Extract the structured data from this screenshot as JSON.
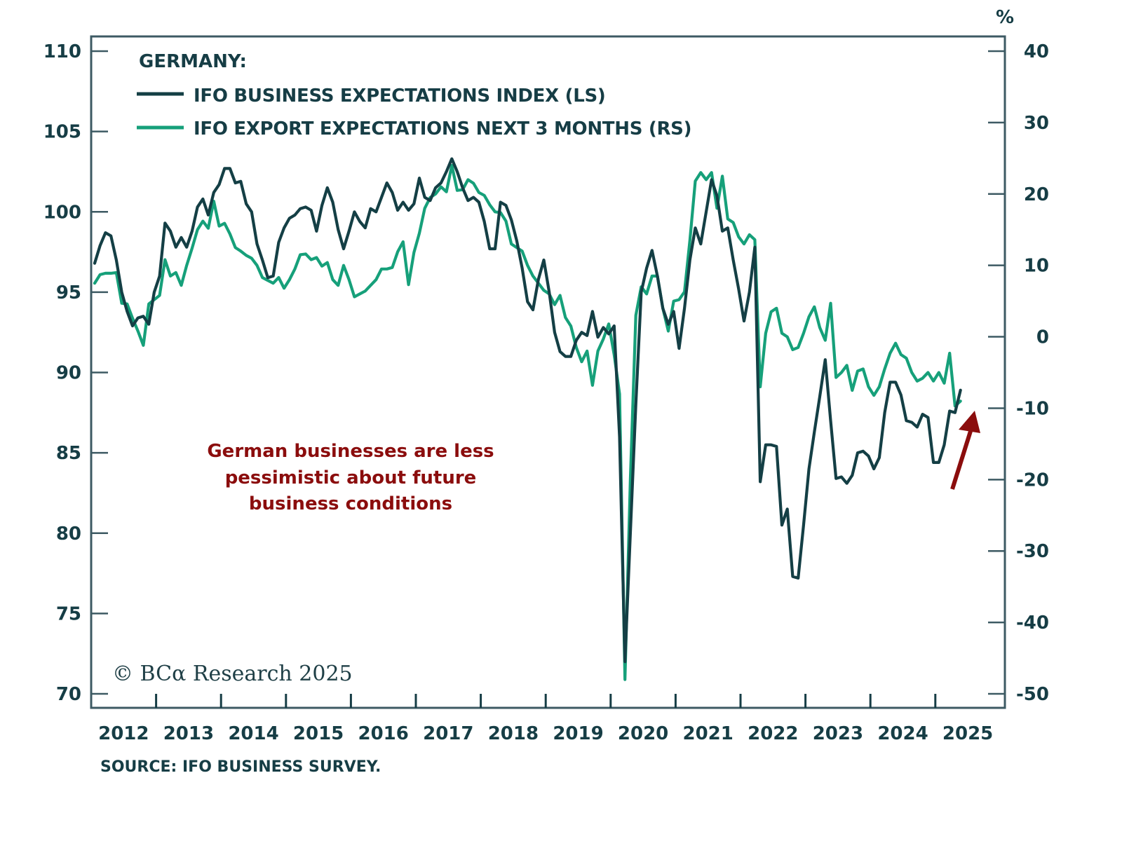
{
  "chart_data": {
    "type": "line",
    "title": "GERMANY:",
    "source": "SOURCE: IFO BUSINESS SURVEY.",
    "copyright": "© BCα Research 2025",
    "annotation": [
      "German businesses are less",
      "pessimistic about future",
      "business conditions"
    ],
    "right_axis_unit": "%",
    "x_start": "2012-01",
    "x_frequency": "monthly",
    "x_tick_labels": [
      "2012",
      "2013",
      "2014",
      "2015",
      "2016",
      "2017",
      "2018",
      "2019",
      "2020",
      "2021",
      "2022",
      "2023",
      "2024",
      "2025"
    ],
    "left_axis": {
      "label": "LS",
      "ylim": [
        70,
        110
      ],
      "ticks": [
        110,
        105,
        100,
        95,
        90,
        85,
        80,
        75,
        70
      ]
    },
    "right_axis": {
      "label": "RS",
      "ylim": [
        -50,
        40
      ],
      "ticks": [
        40,
        30,
        20,
        10,
        0,
        -10,
        -20,
        -30,
        -40,
        -50
      ]
    },
    "grid": false,
    "legend_position": "top-left",
    "colors": {
      "business": "#143f45",
      "export": "#16a07a",
      "annotation": "#8b0d0d",
      "axis": "#3d5a63"
    },
    "series": [
      {
        "name": "IFO BUSINESS EXPECTATIONS INDEX (LS)",
        "axis": "left",
        "color": "#143f45",
        "values": [
          96.8,
          97.9,
          98.7,
          98.5,
          97.0,
          95.0,
          93.8,
          92.9,
          93.4,
          93.5,
          93.0,
          95.0,
          96.0,
          99.3,
          98.8,
          97.8,
          98.4,
          97.8,
          98.8,
          100.3,
          100.8,
          99.8,
          101.2,
          101.7,
          102.7,
          102.7,
          101.8,
          101.9,
          100.5,
          100.0,
          98.0,
          97.0,
          95.9,
          96.0,
          98.1,
          99.0,
          99.6,
          99.8,
          100.2,
          100.3,
          100.1,
          98.8,
          100.4,
          101.5,
          100.6,
          98.9,
          97.7,
          98.8,
          100.0,
          99.4,
          99.0,
          100.2,
          100.0,
          100.9,
          101.8,
          101.2,
          100.1,
          100.6,
          100.1,
          100.5,
          102.1,
          100.9,
          100.7,
          101.5,
          101.8,
          102.5,
          103.3,
          102.5,
          101.5,
          100.7,
          100.9,
          100.6,
          99.4,
          97.7,
          97.7,
          100.6,
          100.4,
          99.5,
          98.2,
          96.5,
          94.4,
          93.9,
          95.8,
          97.0,
          95.0,
          92.5,
          91.3,
          91.0,
          91.0,
          92.0,
          92.5,
          92.3,
          93.8,
          92.2,
          92.8,
          92.4,
          92.9,
          86.0,
          72.0,
          80.0,
          88.0,
          95.0,
          96.5,
          97.6,
          96.0,
          94.0,
          93.0,
          93.8,
          91.5,
          94.0,
          97.0,
          99.0,
          98.0,
          100.0,
          102.0,
          101.0,
          98.8,
          99.0,
          97.0,
          95.2,
          93.2,
          95.0,
          97.8,
          83.2,
          85.5,
          85.5,
          85.4,
          80.5,
          81.5,
          77.3,
          77.2,
          80.5,
          84.0,
          86.3,
          88.5,
          90.8,
          87.0,
          83.4,
          83.5,
          83.1,
          83.6,
          85.0,
          85.1,
          84.8,
          84.0,
          84.7,
          87.5,
          89.4,
          89.4,
          88.6,
          87.0,
          86.9,
          86.6,
          87.4,
          87.2,
          84.4,
          84.4,
          85.5,
          87.6,
          87.5,
          88.9
        ]
      },
      {
        "name": "IFO EXPORT EXPECTATIONS NEXT 3 MONTHS (RS)",
        "axis": "right",
        "color": "#16a07a",
        "values": [
          7.5,
          8.7,
          8.9,
          8.9,
          9.0,
          4.7,
          4.6,
          2.6,
          0.8,
          -1.2,
          4.6,
          5.2,
          5.8,
          10.8,
          8.5,
          9.0,
          7.2,
          10.0,
          12.4,
          15.0,
          16.2,
          15.2,
          19.0,
          15.5,
          15.9,
          14.4,
          12.5,
          12.0,
          11.4,
          11.0,
          10.0,
          8.3,
          7.9,
          7.5,
          8.3,
          6.8,
          8.0,
          9.5,
          11.5,
          11.6,
          10.8,
          11.1,
          9.9,
          10.4,
          8.0,
          7.2,
          10.0,
          8.0,
          5.6,
          6.0,
          6.4,
          7.2,
          8.0,
          9.5,
          9.5,
          9.7,
          11.9,
          13.3,
          7.3,
          11.8,
          14.5,
          18.0,
          19.5,
          20.0,
          21.0,
          20.3,
          24.0,
          20.5,
          20.6,
          22.0,
          21.5,
          20.2,
          19.8,
          18.5,
          17.5,
          17.4,
          16.2,
          13.0,
          12.5,
          12.0,
          10.0,
          8.5,
          7.5,
          6.5,
          6.0,
          4.5,
          5.8,
          2.7,
          1.5,
          -1.5,
          -3.5,
          -2.0,
          -6.8,
          -2.0,
          -0.3,
          1.8,
          -2.5,
          -8.0,
          -48.0,
          -20.0,
          3.0,
          7.0,
          6.0,
          8.5,
          8.5,
          4.0,
          0.8,
          5.0,
          5.2,
          6.3,
          13.5,
          21.8,
          23.0,
          22.0,
          23.0,
          18.0,
          22.5,
          16.5,
          16.0,
          14.0,
          13.0,
          14.3,
          13.6,
          -7.0,
          0.5,
          3.5,
          4.0,
          0.5,
          0.0,
          -1.8,
          -1.5,
          0.5,
          2.8,
          4.2,
          1.3,
          -0.5,
          4.7,
          -5.7,
          -5.0,
          -4.0,
          -7.5,
          -4.8,
          -4.5,
          -7.0,
          -8.2,
          -7.0,
          -4.5,
          -2.3,
          -0.9,
          -2.5,
          -3.0,
          -5.0,
          -6.2,
          -5.8,
          -5.0,
          -6.2,
          -5.0,
          -6.5,
          -2.3,
          -9.7,
          -9.0
        ]
      }
    ]
  }
}
